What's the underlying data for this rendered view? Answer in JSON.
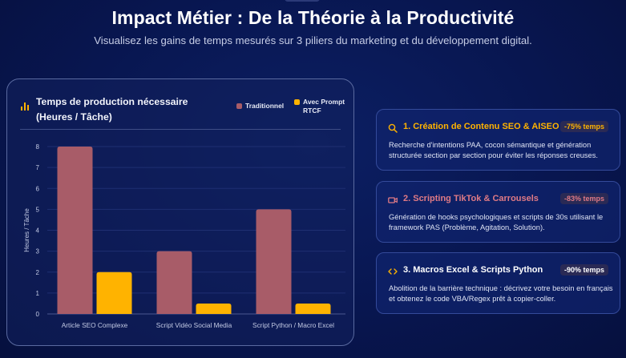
{
  "header": {
    "title": "Impact Métier : De la Théorie à la Productivité",
    "subtitle": "Visualisez les gains de temps mesurés sur 3 piliers du marketing et du développement digital."
  },
  "chart_card": {
    "title": "Temps de production nécessaire (Heures / Tâche)",
    "legend": [
      {
        "label": "Traditionnel",
        "color": "#a85c68"
      },
      {
        "label": "Avec Prompt RTCF",
        "color": "#ffb300"
      }
    ]
  },
  "chart_data": {
    "type": "bar",
    "title": "Temps de production nécessaire (Heures / Tâche)",
    "categories": [
      "Article SEO Complexe",
      "Script Vidéo Social Media",
      "Script Python / Macro Excel"
    ],
    "series": [
      {
        "name": "Traditionnel",
        "values": [
          8,
          3,
          5
        ],
        "color": "#a85c68"
      },
      {
        "name": "Avec Prompt RTCF",
        "values": [
          2,
          0.5,
          0.5
        ],
        "color": "#ffb300"
      }
    ],
    "xlabel": "",
    "ylabel": "Heures / Tâche",
    "ylim": [
      0,
      8
    ],
    "yticks": [
      0,
      1,
      2,
      3,
      4,
      5,
      6,
      7,
      8
    ],
    "grid": true,
    "legend_position": "top-right"
  },
  "cards": [
    {
      "icon": "search-icon",
      "title": "1. Création de Contenu SEO & AISEO",
      "title_color": "#ffb300",
      "badge": "-75% temps",
      "badge_color": "#ffb300",
      "text": "Recherche d'intentions PAA, cocon sémantique et génération structurée section par section pour éviter les réponses creuses."
    },
    {
      "icon": "video-icon",
      "title": "2. Scripting TikTok & Carrousels",
      "title_color": "#e07a85",
      "badge": "-83% temps",
      "badge_color": "#e07a85",
      "text": "Génération de hooks psychologiques et scripts de 30s utilisant le framework PAS (Problème, Agitation, Solution)."
    },
    {
      "icon": "code-icon",
      "title": "3. Macros Excel & Scripts Python",
      "title_color": "#ffffff",
      "badge": "-90% temps",
      "badge_color": "#ffffff",
      "text": "Abolition de la barrière technique : décrivez votre besoin en français et obtenez le code VBA/Regex prêt à copier-coller."
    }
  ]
}
